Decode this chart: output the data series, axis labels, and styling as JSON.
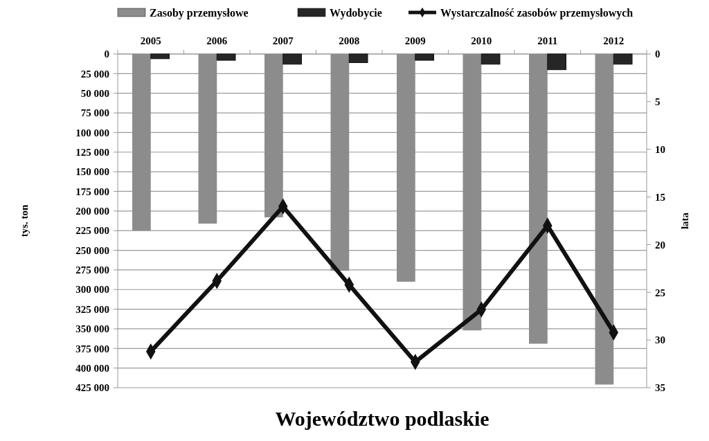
{
  "chart_data": {
    "type": "bar",
    "title": "Województwo podlaskie",
    "ylabel": "tys. ton",
    "y2label": "lata",
    "categories": [
      "2005",
      "2006",
      "2007",
      "2008",
      "2009",
      "2010",
      "2011",
      "2012"
    ],
    "series": [
      {
        "name": "Zasoby przemysłowe",
        "color": "#8c8c8c",
        "values": [
          225000,
          216000,
          208000,
          276000,
          290000,
          352000,
          369000,
          421000
        ]
      },
      {
        "name": "Wydobycie",
        "color": "#262626",
        "values": [
          6000,
          8000,
          13000,
          11000,
          8000,
          13000,
          20000,
          13000
        ]
      },
      {
        "name": "Wystarczalność zasobów przemysłowych",
        "type": "line",
        "axis": "y2",
        "color": "#111111",
        "marker": "diamond",
        "values": [
          31.2,
          23.8,
          16.0,
          24.2,
          32.3,
          26.8,
          18.0,
          29.2
        ]
      }
    ],
    "ylim": [
      425000,
      0
    ],
    "yticks": [
      0,
      {
        "value": 25000,
        "label": "25 000"
      },
      {
        "value": 50000,
        "label": "50 000"
      },
      {
        "value": 75000,
        "label": "75 000"
      },
      {
        "value": 100000,
        "label": "100 000"
      },
      {
        "value": 125000,
        "label": "125 000"
      },
      {
        "value": 150000,
        "label": "150 000"
      },
      {
        "value": 175000,
        "label": "175 000"
      },
      {
        "value": 200000,
        "label": "200 000"
      },
      {
        "value": 225000,
        "label": "225 000"
      },
      {
        "value": 250000,
        "label": "250 000"
      },
      {
        "value": 275000,
        "label": "275 000"
      },
      {
        "value": 300000,
        "label": "300 000"
      },
      {
        "value": 325000,
        "label": "325 000"
      },
      {
        "value": 350000,
        "label": "350 000"
      },
      {
        "value": 375000,
        "label": "375 000"
      },
      {
        "value": 400000,
        "label": "400 000"
      },
      {
        "value": 425000,
        "label": "425 000"
      }
    ],
    "y2lim": [
      35,
      0
    ],
    "y2ticks": [
      0,
      5,
      10,
      15,
      20,
      25,
      30,
      35
    ],
    "grid": "y",
    "legend": "top"
  }
}
